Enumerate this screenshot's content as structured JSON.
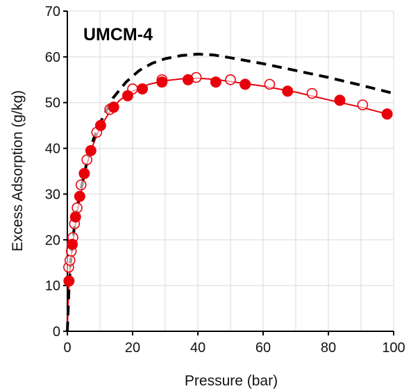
{
  "chart_data": {
    "type": "scatter",
    "title": "UMCM-4",
    "xlabel": "Pressure (bar)",
    "ylabel": "Excess Adsorption (g/kg)",
    "xlim": [
      0,
      100
    ],
    "ylim": [
      0,
      70
    ],
    "x_ticks": [
      0,
      20,
      40,
      60,
      80,
      100
    ],
    "y_ticks": [
      0,
      10,
      20,
      30,
      40,
      50,
      60,
      70
    ],
    "grid": true,
    "legend": "none",
    "colors": {
      "series_red": "#e8000b",
      "dashed_line": "#000000",
      "grid": "#d9d9d9",
      "axis": "#000000"
    },
    "series": [
      {
        "kind": "filled-markers",
        "x": [
          0.5,
          1.5,
          2.5,
          3.8,
          5.2,
          7.2,
          10.2,
          14.2,
          18.5,
          23.0,
          29.0,
          37.0,
          45.5,
          54.5,
          67.5,
          83.5,
          98.0
        ],
        "y": [
          11.0,
          19.0,
          25.0,
          29.5,
          34.5,
          39.5,
          45.0,
          49.0,
          51.5,
          53.0,
          54.5,
          55.0,
          54.5,
          54.0,
          52.5,
          50.5,
          47.5
        ]
      },
      {
        "kind": "open-markers",
        "x": [
          0.4,
          0.8,
          1.2,
          1.7,
          2.2,
          3.0,
          4.2,
          6.0,
          9.0,
          13.0,
          20.0,
          29.0,
          39.5,
          50.0,
          62.0,
          75.0,
          90.5
        ],
        "y": [
          14.0,
          15.5,
          17.5,
          20.5,
          23.5,
          27.0,
          32.0,
          37.5,
          43.5,
          48.5,
          53.0,
          55.0,
          55.5,
          55.0,
          54.0,
          52.0,
          49.5
        ]
      },
      {
        "kind": "fit-line",
        "x": [
          0.0,
          0.5,
          1.0,
          2.0,
          3.0,
          4.0,
          6.0,
          8.0,
          10.0,
          13.0,
          16.0,
          20.0,
          25.0,
          30.0,
          35.0,
          40.0,
          45.0,
          50.0,
          60.0,
          70.0,
          80.0,
          90.0,
          98.0
        ],
        "y": [
          0.0,
          11.0,
          15.0,
          21.0,
          26.0,
          29.5,
          36.5,
          41.0,
          44.5,
          48.0,
          50.5,
          52.5,
          54.0,
          54.8,
          55.2,
          55.3,
          55.1,
          54.6,
          53.6,
          52.3,
          50.6,
          49.0,
          47.5
        ]
      },
      {
        "kind": "dashed-line",
        "x": [
          0.0,
          0.5,
          1.0,
          2.0,
          3.0,
          4.0,
          6.0,
          8.0,
          10.0,
          14.0,
          18.0,
          22.0,
          26.0,
          30.0,
          35.0,
          40.0,
          45.0,
          50.0,
          60.0,
          70.0,
          80.0,
          90.0,
          100.0
        ],
        "y": [
          0.0,
          9.0,
          15.0,
          22.0,
          27.0,
          30.5,
          37.0,
          42.0,
          45.5,
          51.0,
          54.5,
          57.0,
          58.6,
          59.6,
          60.3,
          60.6,
          60.4,
          59.8,
          58.5,
          57.0,
          55.5,
          53.8,
          52.0
        ]
      }
    ]
  }
}
